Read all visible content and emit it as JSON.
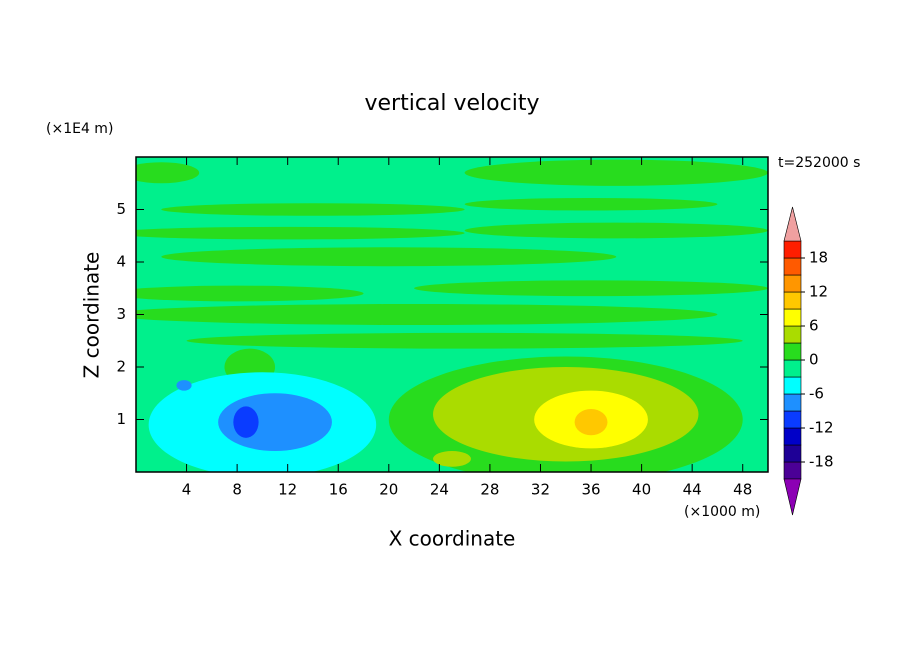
{
  "chart_data": {
    "type": "contour",
    "title": "vertical velocity",
    "time_label": "t=252000 s",
    "x_label": "X coordinate",
    "y_label": "Z coordinate",
    "x_unit": "(×1000 m)",
    "y_unit": "(×1E4 m)",
    "xlim": [
      0,
      50
    ],
    "ylim": [
      0,
      6
    ],
    "xticks": [
      4,
      8,
      12,
      16,
      20,
      24,
      28,
      32,
      36,
      40,
      44,
      48
    ],
    "yticks": [
      1,
      2,
      3,
      4,
      5
    ],
    "background_value": -1.5,
    "regions": [
      {
        "x": 2,
        "z": 5.7,
        "rx": 3,
        "rz": 0.2,
        "value": 1.5
      },
      {
        "x": 38,
        "z": 5.7,
        "rx": 12,
        "rz": 0.25,
        "value": 1.5
      },
      {
        "x": 14,
        "z": 5.0,
        "rx": 12,
        "rz": 0.12,
        "value": 1.5
      },
      {
        "x": 36,
        "z": 5.1,
        "rx": 10,
        "rz": 0.12,
        "value": 1.5
      },
      {
        "x": 12,
        "z": 4.55,
        "rx": 14,
        "rz": 0.12,
        "value": 1.5
      },
      {
        "x": 38,
        "z": 4.6,
        "rx": 12,
        "rz": 0.15,
        "value": 1.5
      },
      {
        "x": 20,
        "z": 4.1,
        "rx": 18,
        "rz": 0.18,
        "value": 1.5
      },
      {
        "x": 8,
        "z": 3.4,
        "rx": 10,
        "rz": 0.15,
        "value": 1.5
      },
      {
        "x": 36,
        "z": 3.5,
        "rx": 14,
        "rz": 0.15,
        "value": 1.5
      },
      {
        "x": 22,
        "z": 3.0,
        "rx": 24,
        "rz": 0.2,
        "value": 1.5
      },
      {
        "x": 26,
        "z": 2.5,
        "rx": 22,
        "rz": 0.15,
        "value": 1.5
      },
      {
        "x": 9,
        "z": 2.0,
        "rx": 2,
        "rz": 0.35,
        "value": 1.5
      },
      {
        "x": 10,
        "z": 0.9,
        "rx": 9,
        "rz": 1.0,
        "value": -4.5
      },
      {
        "x": 11,
        "z": 0.95,
        "rx": 4.5,
        "rz": 0.55,
        "value": -7.5
      },
      {
        "x": 3.8,
        "z": 1.65,
        "rx": 0.6,
        "rz": 0.1,
        "value": -7.5
      },
      {
        "x": 8.7,
        "z": 0.95,
        "rx": 1,
        "rz": 0.3,
        "value": -10.5
      },
      {
        "x": 34,
        "z": 1.0,
        "rx": 14,
        "rz": 1.2,
        "value": 1.5
      },
      {
        "x": 34,
        "z": 1.1,
        "rx": 10.5,
        "rz": 0.9,
        "value": 4.5
      },
      {
        "x": 25,
        "z": 0.25,
        "rx": 1.5,
        "rz": 0.15,
        "value": 4.5
      },
      {
        "x": 36,
        "z": 1.0,
        "rx": 4.5,
        "rz": 0.55,
        "value": 7.5
      },
      {
        "x": 36,
        "z": 0.95,
        "rx": 1.3,
        "rz": 0.25,
        "value": 10.5
      }
    ],
    "levels": [
      -21,
      -18,
      -15,
      -12,
      -9,
      -6,
      -3,
      0,
      3,
      6,
      9,
      12,
      15,
      18,
      21
    ],
    "colors": [
      "#4b0096",
      "#1e0096",
      "#0000c8",
      "#0a3cff",
      "#1e90ff",
      "#00ffff",
      "#00f08c",
      "#28dc1e",
      "#aadc00",
      "#ffff00",
      "#ffc800",
      "#ff9600",
      "#ff5a00",
      "#ff1e00"
    ],
    "under_color": "#8c00b4",
    "over_color": "#f0a0a0",
    "cbar_ticks": [
      -18,
      -12,
      -6,
      0,
      6,
      12,
      18
    ]
  }
}
